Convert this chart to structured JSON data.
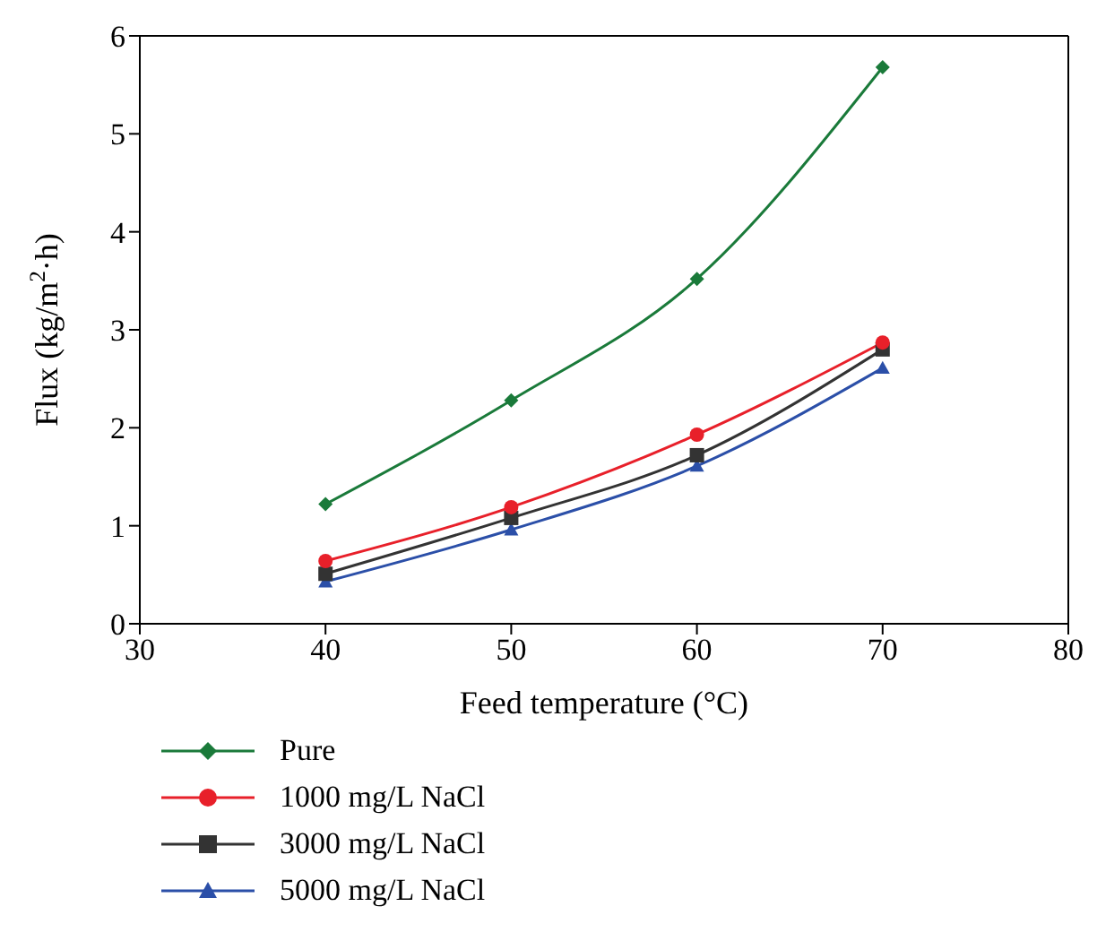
{
  "chart_data": {
    "type": "line",
    "xlabel": "Feed temperature (°C)",
    "ylabel": "Flux (kg/m$^{2}$·h)",
    "x": [
      40,
      50,
      60,
      70
    ],
    "series": [
      {
        "name": "Pure",
        "color": "#1a7a3a",
        "marker": "diamond",
        "values": [
          1.22,
          2.28,
          3.52,
          5.68
        ]
      },
      {
        "name": "1000 mg/L NaCl",
        "color": "#e8202a",
        "marker": "circle",
        "values": [
          0.64,
          1.19,
          1.93,
          2.87
        ]
      },
      {
        "name": "3000 mg/L NaCl",
        "color": "#333333",
        "marker": "square",
        "values": [
          0.51,
          1.08,
          1.72,
          2.8
        ]
      },
      {
        "name": "5000 mg/L NaCl",
        "color": "#2b4fa8",
        "marker": "triangle",
        "values": [
          0.43,
          0.96,
          1.61,
          2.61
        ]
      }
    ],
    "xlim": [
      30,
      80
    ],
    "xticks": [
      30,
      40,
      50,
      60,
      70,
      80
    ],
    "ylim": [
      0,
      6
    ],
    "yticks": [
      0,
      1,
      2,
      3,
      4,
      5,
      6
    ],
    "grid": false,
    "legend": "bottom left",
    "line_style": "solid"
  }
}
